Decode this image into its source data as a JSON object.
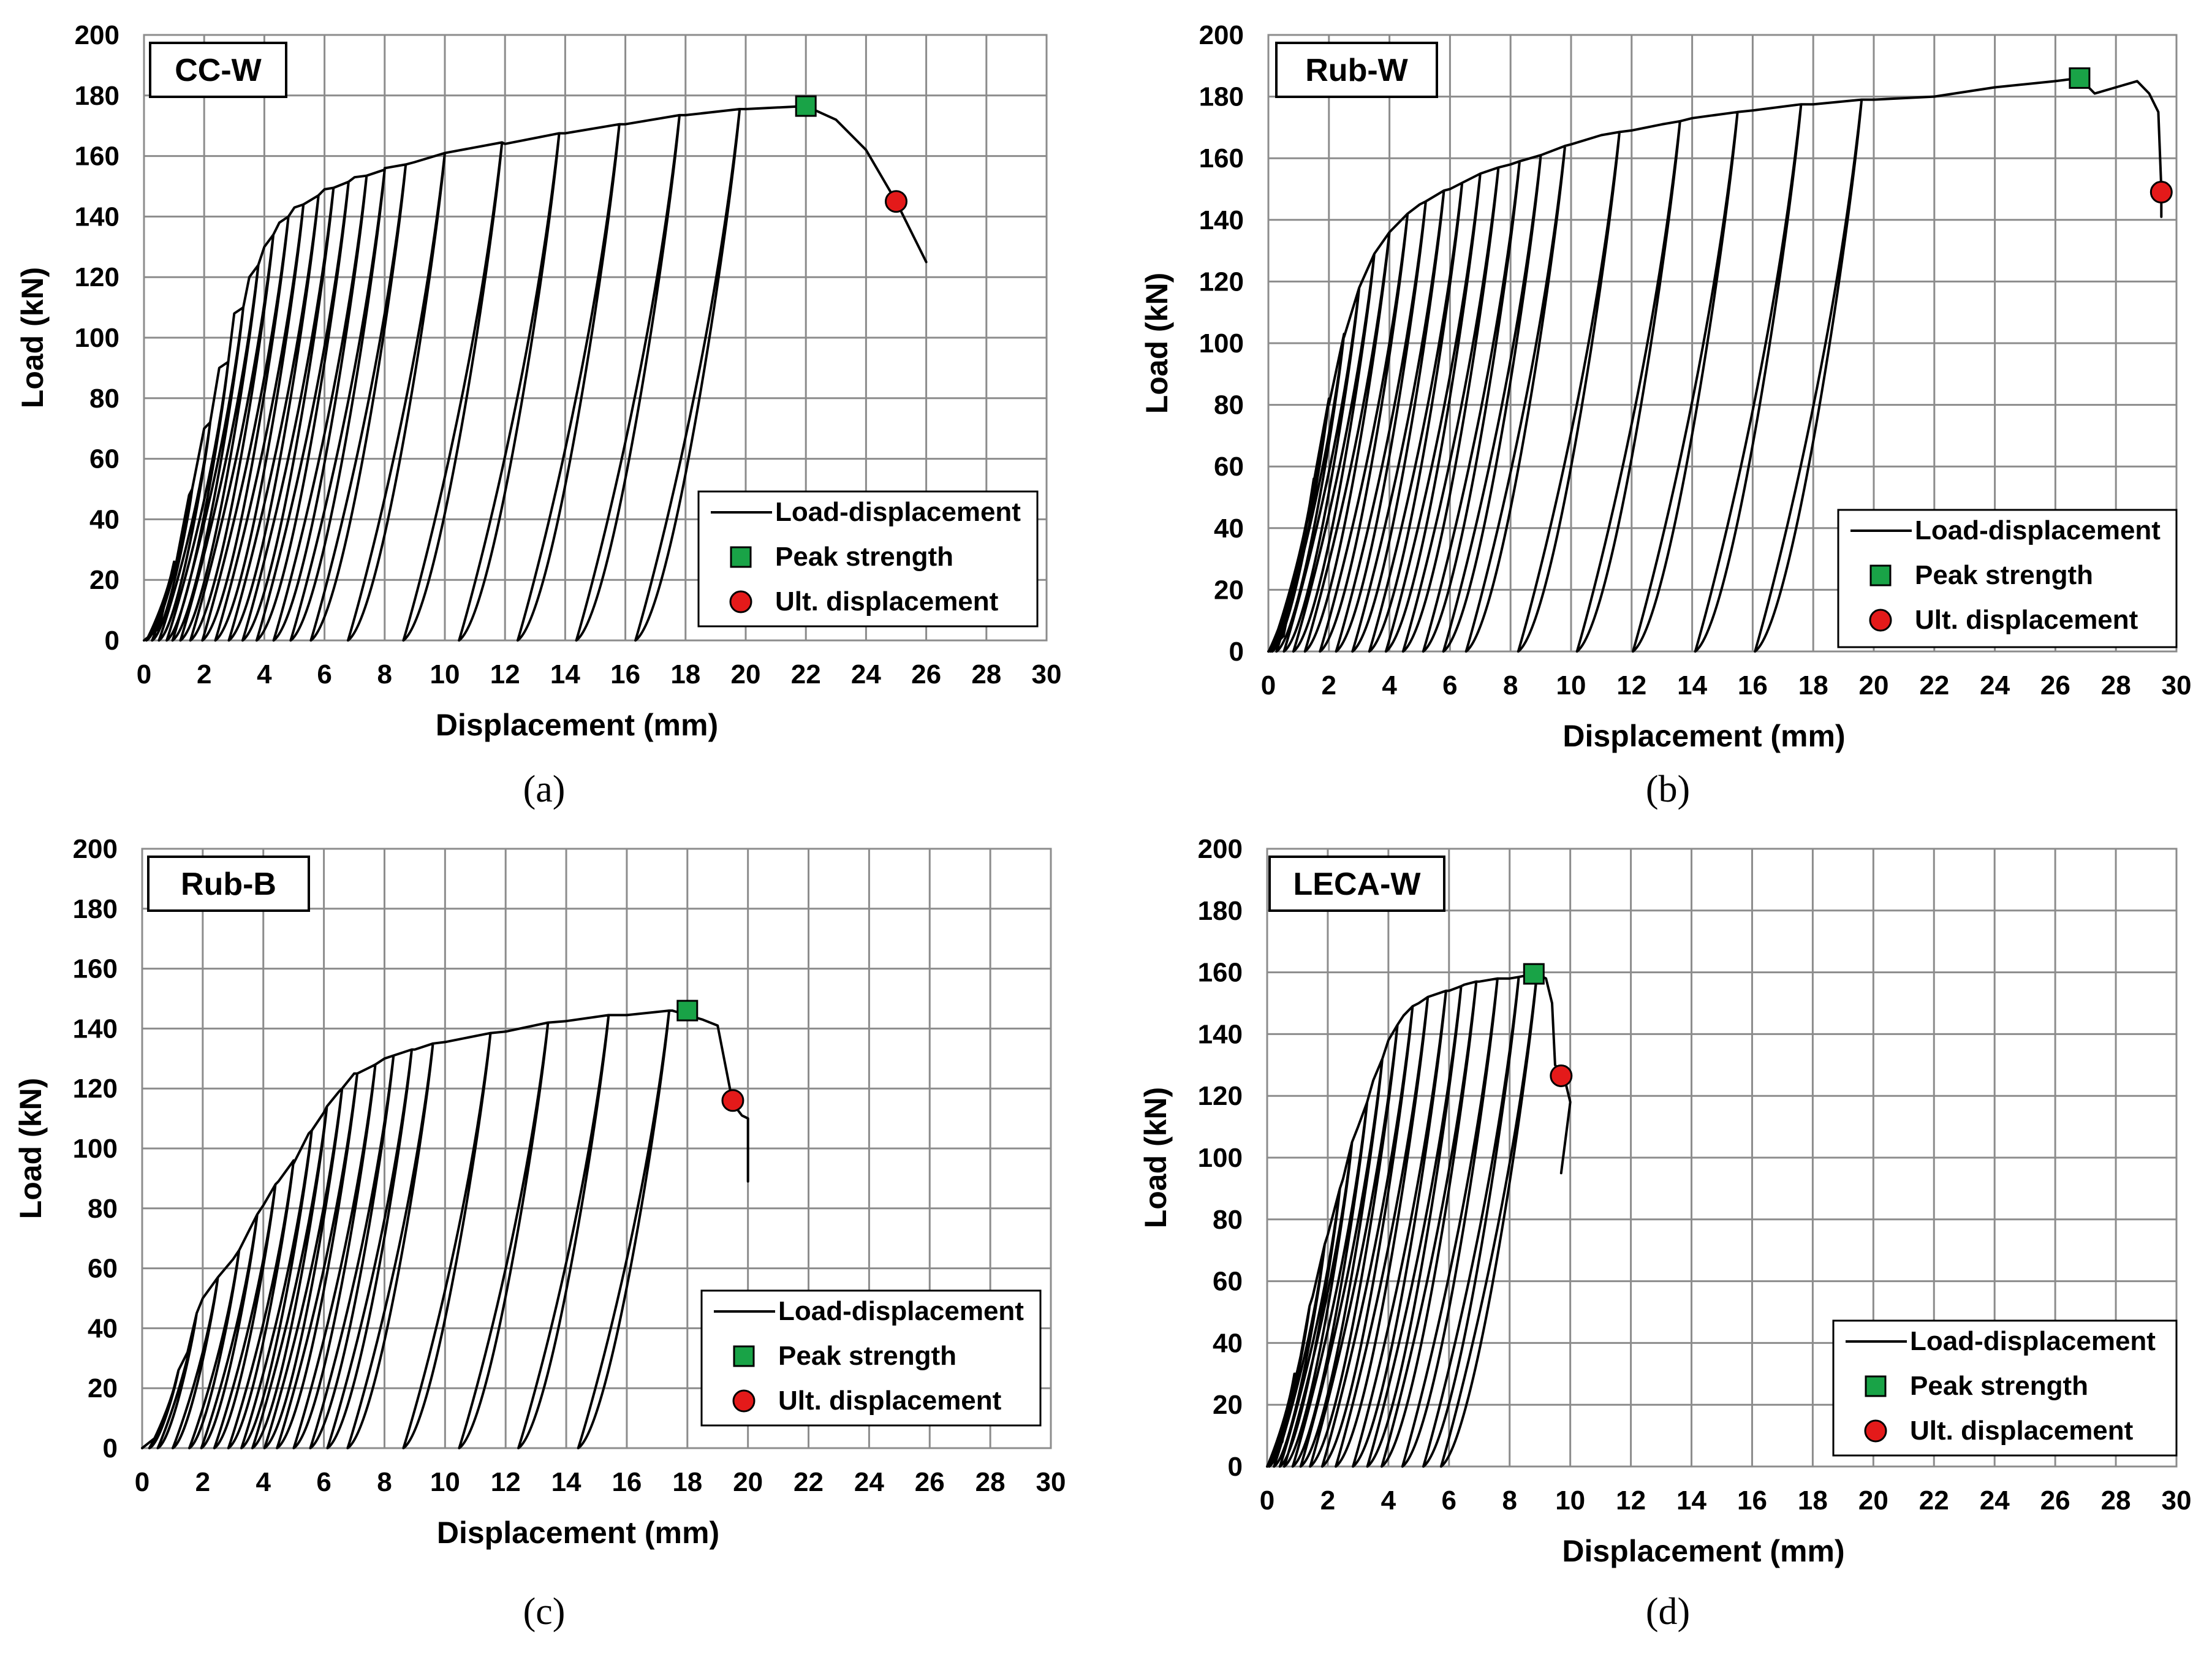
{
  "figure": {
    "colors": {
      "curve": "#000000",
      "peak": "#19a347",
      "ult": "#e41a1a",
      "grid": "#8c8c8c"
    }
  },
  "chart_data": [
    {
      "id": "a",
      "type": "line",
      "specimen": "CC-W",
      "caption": "(a)",
      "xlabel": "Displacement (mm)",
      "ylabel": "Load (kN)",
      "xlim": [
        0,
        30
      ],
      "ylim": [
        0,
        200
      ],
      "xticks": [
        "0",
        "2",
        "4",
        "6",
        "8",
        "10",
        "12",
        "14",
        "16",
        "18",
        "20",
        "22",
        "24",
        "26",
        "28",
        "30"
      ],
      "yticks": [
        "0",
        "20",
        "40",
        "60",
        "80",
        "100",
        "120",
        "140",
        "160",
        "180",
        "200"
      ],
      "grid": true,
      "legend_position": "bottom-right",
      "legend": [
        "Load-displacement",
        "Peak strength",
        "Ult. displacement"
      ],
      "envelope": [
        [
          0,
          0
        ],
        [
          0.5,
          4
        ],
        [
          1,
          22
        ],
        [
          1.5,
          48
        ],
        [
          2,
          70
        ],
        [
          2.5,
          90
        ],
        [
          3,
          108
        ],
        [
          3.5,
          120
        ],
        [
          4,
          130
        ],
        [
          4.5,
          138
        ],
        [
          5,
          143
        ],
        [
          6,
          149
        ],
        [
          7,
          153
        ],
        [
          8,
          156
        ],
        [
          9,
          158
        ],
        [
          10,
          161
        ],
        [
          12,
          164
        ],
        [
          14,
          167.5
        ],
        [
          16,
          170.5
        ],
        [
          18,
          173.5
        ],
        [
          20,
          175.5
        ],
        [
          22,
          176.5
        ],
        [
          23,
          172
        ],
        [
          24,
          162
        ],
        [
          25,
          145
        ],
        [
          26,
          125
        ]
      ],
      "cycles": [
        [
          1.0,
          26
        ],
        [
          1.6,
          50
        ],
        [
          2.2,
          72
        ],
        [
          2.8,
          92
        ],
        [
          3.3,
          110
        ],
        [
          3.8,
          124
        ],
        [
          4.3,
          134
        ],
        [
          4.8,
          140
        ],
        [
          5.3,
          144
        ],
        [
          5.8,
          147
        ],
        [
          6.3,
          149.5
        ],
        [
          6.8,
          151.5
        ],
        [
          7.4,
          153.5
        ],
        [
          8.0,
          155.5
        ],
        [
          8.7,
          157.2
        ],
        [
          10.0,
          161
        ],
        [
          11.9,
          164.5
        ],
        [
          13.8,
          167.5
        ],
        [
          15.8,
          170.5
        ],
        [
          17.8,
          173.5
        ],
        [
          19.8,
          175.5
        ]
      ],
      "cycle_offset": 0.48,
      "peak_strength": {
        "x": 22.0,
        "y": 176.5
      },
      "ult_displacement": {
        "x": 25.0,
        "y": 145
      }
    },
    {
      "id": "b",
      "type": "line",
      "specimen": "Rub-W",
      "caption": "(b)",
      "xlabel": "Displacement (mm)",
      "ylabel": "Load (kN)",
      "xlim": [
        0,
        30
      ],
      "ylim": [
        0,
        200
      ],
      "xticks": [
        "0",
        "2",
        "4",
        "6",
        "8",
        "10",
        "12",
        "14",
        "16",
        "18",
        "20",
        "22",
        "24",
        "26",
        "28",
        "30"
      ],
      "yticks": [
        "0",
        "20",
        "40",
        "60",
        "80",
        "100",
        "120",
        "140",
        "160",
        "180",
        "200"
      ],
      "grid": true,
      "legend_position": "bottom-right",
      "legend": [
        "Load-displacement",
        "Peak strength",
        "Ult. displacement"
      ],
      "envelope": [
        [
          0,
          0
        ],
        [
          0.5,
          5
        ],
        [
          1,
          25
        ],
        [
          1.5,
          55
        ],
        [
          2,
          80
        ],
        [
          2.5,
          102
        ],
        [
          3,
          118
        ],
        [
          3.5,
          129
        ],
        [
          4,
          136
        ],
        [
          5,
          145
        ],
        [
          6,
          150
        ],
        [
          7,
          155
        ],
        [
          8,
          158
        ],
        [
          9,
          161
        ],
        [
          10,
          164.5
        ],
        [
          11,
          167.5
        ],
        [
          12,
          169
        ],
        [
          13,
          171
        ],
        [
          14,
          173
        ],
        [
          16,
          175.5
        ],
        [
          18,
          177.5
        ],
        [
          20,
          179
        ],
        [
          22,
          180
        ],
        [
          24,
          183
        ],
        [
          26,
          185
        ],
        [
          26.8,
          186
        ],
        [
          27.3,
          181
        ],
        [
          28,
          183
        ],
        [
          28.7,
          185
        ],
        [
          29.1,
          181
        ],
        [
          29.4,
          175
        ],
        [
          29.5,
          150
        ],
        [
          29.5,
          141
        ]
      ],
      "cycles": [
        [
          1.0,
          30
        ],
        [
          1.5,
          56
        ],
        [
          2.0,
          82
        ],
        [
          2.5,
          103
        ],
        [
          3.0,
          118
        ],
        [
          3.5,
          129
        ],
        [
          4.0,
          136
        ],
        [
          4.6,
          142
        ],
        [
          5.2,
          146
        ],
        [
          5.8,
          149.5
        ],
        [
          6.4,
          152
        ],
        [
          7.0,
          155
        ],
        [
          7.6,
          157
        ],
        [
          8.3,
          159
        ],
        [
          9.0,
          161
        ],
        [
          9.8,
          164
        ],
        [
          11.6,
          168.5
        ],
        [
          13.6,
          172
        ],
        [
          15.5,
          175
        ],
        [
          17.6,
          177.5
        ],
        [
          19.6,
          179
        ]
      ],
      "cycle_offset": 0.48,
      "peak_strength": {
        "x": 26.8,
        "y": 186
      },
      "ult_displacement": {
        "x": 29.5,
        "y": 149
      }
    },
    {
      "id": "c",
      "type": "line",
      "specimen": "Rub-B",
      "caption": "(c)",
      "xlabel": "Displacement (mm)",
      "ylabel": "Load (kN)",
      "xlim": [
        0,
        30
      ],
      "ylim": [
        0,
        200
      ],
      "xticks": [
        "0",
        "2",
        "4",
        "6",
        "8",
        "10",
        "12",
        "14",
        "16",
        "18",
        "20",
        "22",
        "24",
        "26",
        "28",
        "30"
      ],
      "yticks": [
        "0",
        "20",
        "40",
        "60",
        "80",
        "100",
        "120",
        "140",
        "160",
        "180",
        "200"
      ],
      "grid": true,
      "legend_position": "bottom-right",
      "legend": [
        "Load-displacement",
        "Peak strength",
        "Ult. displacement"
      ],
      "envelope": [
        [
          0,
          0
        ],
        [
          0.5,
          4
        ],
        [
          1,
          18
        ],
        [
          1.5,
          32
        ],
        [
          2,
          50
        ],
        [
          2.5,
          57
        ],
        [
          3,
          63
        ],
        [
          3.5,
          72
        ],
        [
          4,
          81
        ],
        [
          4.5,
          89
        ],
        [
          5,
          95
        ],
        [
          5.5,
          105
        ],
        [
          6,
          112
        ],
        [
          6.5,
          119
        ],
        [
          7,
          125
        ],
        [
          7.5,
          127
        ],
        [
          8,
          130
        ],
        [
          9,
          133
        ],
        [
          10,
          135.5
        ],
        [
          12,
          139
        ],
        [
          14,
          142.5
        ],
        [
          16,
          144.5
        ],
        [
          17.5,
          146
        ],
        [
          18.5,
          143
        ],
        [
          19,
          141
        ],
        [
          19.5,
          115
        ],
        [
          19.8,
          111
        ],
        [
          20,
          110
        ],
        [
          20,
          89
        ]
      ],
      "cycles": [
        [
          1.2,
          26
        ],
        [
          1.8,
          45
        ],
        [
          2.5,
          57
        ],
        [
          3.2,
          66
        ],
        [
          3.8,
          78
        ],
        [
          4.4,
          88
        ],
        [
          5.0,
          96
        ],
        [
          5.6,
          106
        ],
        [
          6.1,
          114
        ],
        [
          6.6,
          120
        ],
        [
          7.1,
          125
        ],
        [
          7.7,
          128
        ],
        [
          8.3,
          131
        ],
        [
          8.9,
          133
        ],
        [
          9.6,
          135
        ],
        [
          11.5,
          138.5
        ],
        [
          13.4,
          142
        ],
        [
          15.4,
          144.5
        ],
        [
          17.4,
          146
        ]
      ],
      "cycle_offset": 0.52,
      "peak_strength": {
        "x": 18.0,
        "y": 146
      },
      "ult_displacement": {
        "x": 19.5,
        "y": 116
      }
    },
    {
      "id": "d",
      "type": "line",
      "specimen": "LECA-W",
      "caption": "(d)",
      "xlabel": "Displacement (mm)",
      "ylabel": "Load (kN)",
      "xlim": [
        0,
        30
      ],
      "ylim": [
        0,
        200
      ],
      "xticks": [
        "0",
        "2",
        "4",
        "6",
        "8",
        "10",
        "12",
        "14",
        "16",
        "18",
        "20",
        "22",
        "24",
        "26",
        "28",
        "30"
      ],
      "yticks": [
        "0",
        "20",
        "40",
        "60",
        "80",
        "100",
        "120",
        "140",
        "160",
        "180",
        "200"
      ],
      "grid": true,
      "legend_position": "bottom-right",
      "legend": [
        "Load-displacement",
        "Peak strength",
        "Ult. displacement"
      ],
      "envelope": [
        [
          0,
          0
        ],
        [
          0.5,
          8
        ],
        [
          1,
          30
        ],
        [
          1.5,
          55
        ],
        [
          2,
          75
        ],
        [
          2.5,
          93
        ],
        [
          3,
          110
        ],
        [
          3.5,
          125
        ],
        [
          4,
          138
        ],
        [
          4.5,
          146
        ],
        [
          5,
          150
        ],
        [
          6,
          154
        ],
        [
          6.5,
          156
        ],
        [
          7,
          157
        ],
        [
          8,
          158
        ],
        [
          8.8,
          159.5
        ],
        [
          9.2,
          158
        ],
        [
          9.4,
          150
        ],
        [
          9.5,
          130
        ],
        [
          9.8,
          126
        ],
        [
          10,
          118
        ],
        [
          9.7,
          95
        ]
      ],
      "cycles": [
        [
          0.9,
          30
        ],
        [
          1.4,
          52
        ],
        [
          1.9,
          72
        ],
        [
          2.4,
          90
        ],
        [
          2.8,
          105
        ],
        [
          3.3,
          118
        ],
        [
          3.8,
          132
        ],
        [
          4.3,
          143
        ],
        [
          4.8,
          149
        ],
        [
          5.3,
          152
        ],
        [
          5.9,
          154
        ],
        [
          6.4,
          155.5
        ],
        [
          6.9,
          157
        ],
        [
          7.6,
          158
        ],
        [
          8.3,
          158.5
        ],
        [
          8.9,
          159.5
        ]
      ],
      "cycle_offset": 0.45,
      "peak_strength": {
        "x": 8.8,
        "y": 159.5
      },
      "ult_displacement": {
        "x": 9.7,
        "y": 126.5
      }
    }
  ]
}
